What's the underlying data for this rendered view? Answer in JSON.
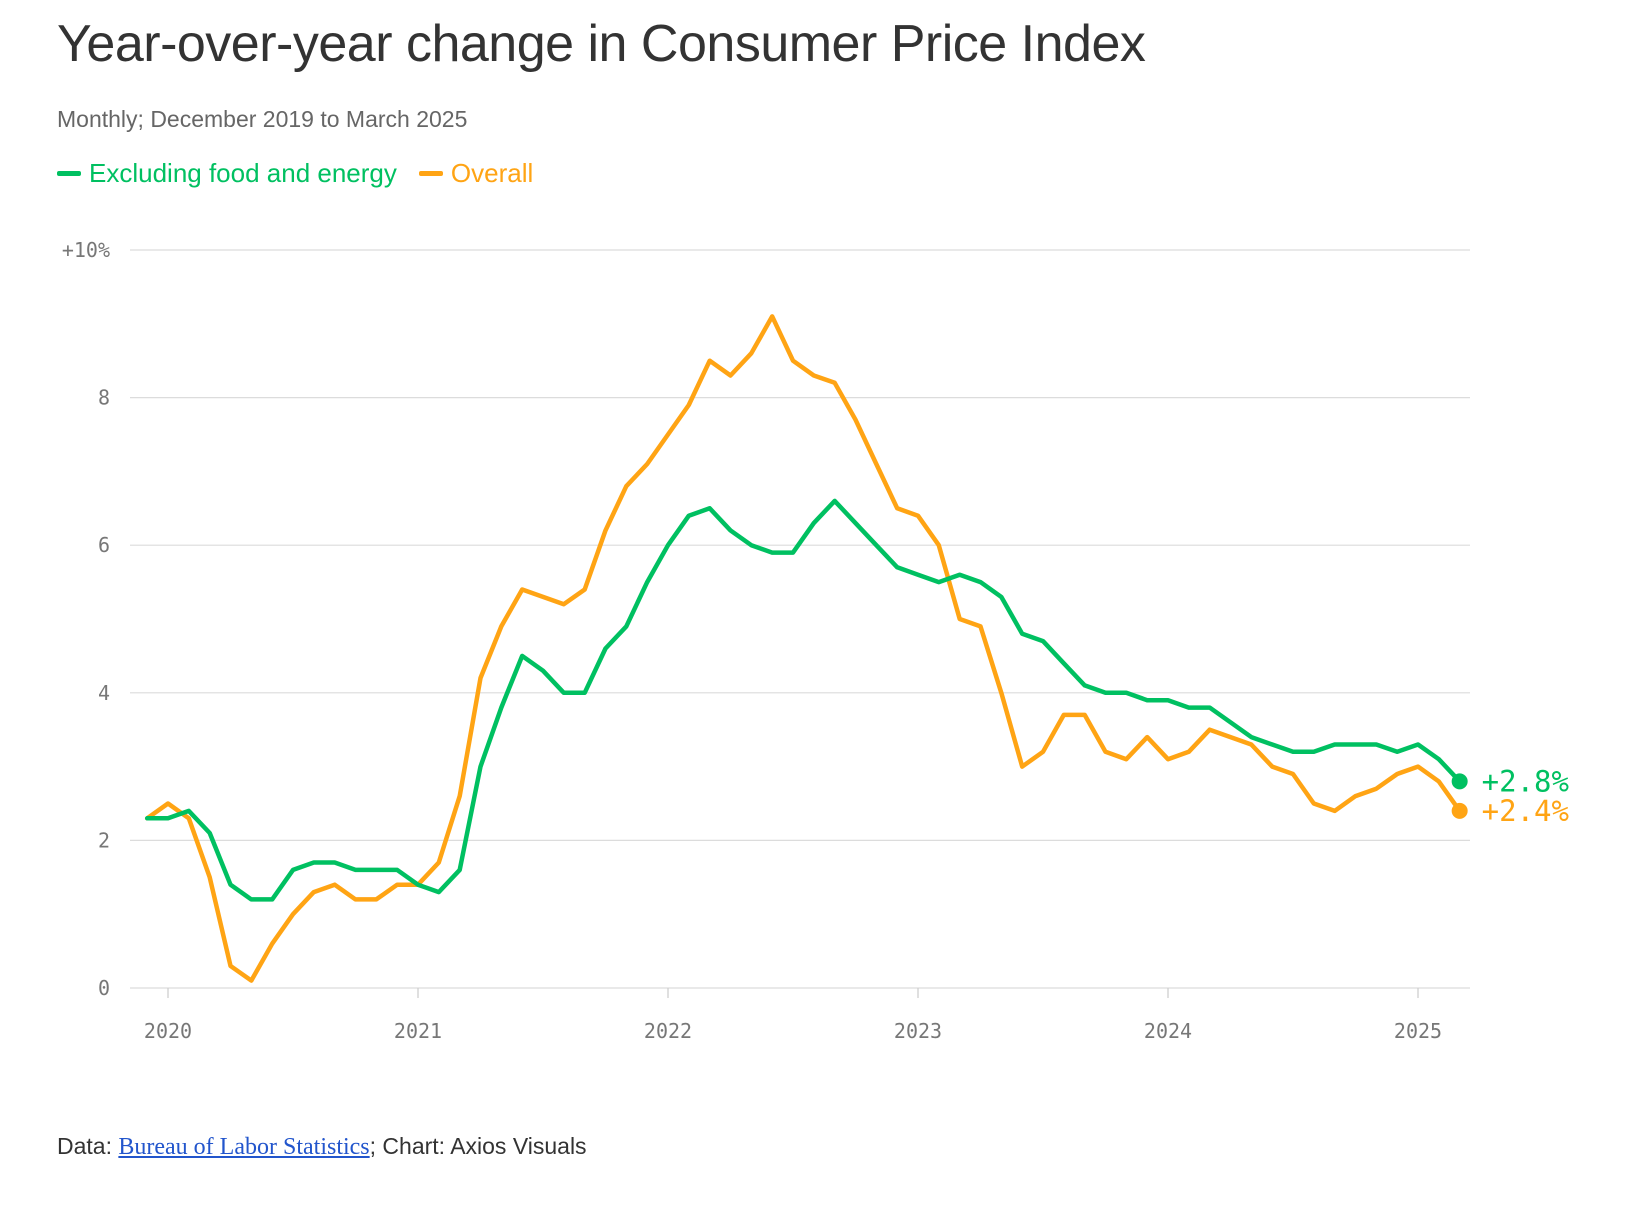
{
  "header": {
    "title": "Year-over-year change in Consumer Price Index",
    "subtitle": "Monthly; December 2019 to March 2025"
  },
  "legend": [
    {
      "label": "Excluding food and energy",
      "color": "#00c061"
    },
    {
      "label": "Overall",
      "color": "#ffa414"
    }
  ],
  "footer": {
    "prefix": "Data: ",
    "source_link": "Bureau of Labor Statistics",
    "suffix": "; Chart: Axios Visuals"
  },
  "chart_data": {
    "type": "line",
    "title": "Year-over-year change in Consumer Price Index",
    "subtitle": "Monthly; December 2019 to March 2025",
    "xlabel": "",
    "ylabel": "",
    "ylim": [
      0,
      10
    ],
    "y_ticks": [
      0,
      2,
      4,
      6,
      8,
      10
    ],
    "y_tick_labels": [
      "0",
      "2",
      "4",
      "6",
      "8",
      "+10%"
    ],
    "x_ticks": [
      "2020",
      "2021",
      "2022",
      "2023",
      "2024",
      "2025"
    ],
    "x_start": "2019-12",
    "x_end": "2025-03",
    "grid": true,
    "series": [
      {
        "name": "Excluding food and energy",
        "color": "#00c061",
        "end_label": "+2.8%",
        "values": [
          2.3,
          2.3,
          2.4,
          2.1,
          1.4,
          1.2,
          1.2,
          1.6,
          1.7,
          1.7,
          1.6,
          1.6,
          1.6,
          1.4,
          1.3,
          1.6,
          3.0,
          3.8,
          4.5,
          4.3,
          4.0,
          4.0,
          4.6,
          4.9,
          5.5,
          6.0,
          6.4,
          6.5,
          6.2,
          6.0,
          5.9,
          5.9,
          6.3,
          6.6,
          6.3,
          6.0,
          5.7,
          5.6,
          5.5,
          5.6,
          5.5,
          5.3,
          4.8,
          4.7,
          4.4,
          4.1,
          4.0,
          4.0,
          3.9,
          3.9,
          3.8,
          3.8,
          3.6,
          3.4,
          3.3,
          3.2,
          3.2,
          3.3,
          3.3,
          3.3,
          3.2,
          3.3,
          3.1,
          2.8
        ]
      },
      {
        "name": "Overall",
        "color": "#ffa414",
        "end_label": "+2.4%",
        "values": [
          2.3,
          2.5,
          2.3,
          1.5,
          0.3,
          0.1,
          0.6,
          1.0,
          1.3,
          1.4,
          1.2,
          1.2,
          1.4,
          1.4,
          1.7,
          2.6,
          4.2,
          4.9,
          5.4,
          5.3,
          5.2,
          5.4,
          6.2,
          6.8,
          7.1,
          7.5,
          7.9,
          8.5,
          8.3,
          8.6,
          9.1,
          8.5,
          8.3,
          8.2,
          7.7,
          7.1,
          6.5,
          6.4,
          6.0,
          5.0,
          4.9,
          4.0,
          3.0,
          3.2,
          3.7,
          3.7,
          3.2,
          3.1,
          3.4,
          3.1,
          3.2,
          3.5,
          3.4,
          3.3,
          3.0,
          2.9,
          2.5,
          2.4,
          2.6,
          2.7,
          2.9,
          3.0,
          2.8,
          2.4
        ]
      }
    ]
  }
}
